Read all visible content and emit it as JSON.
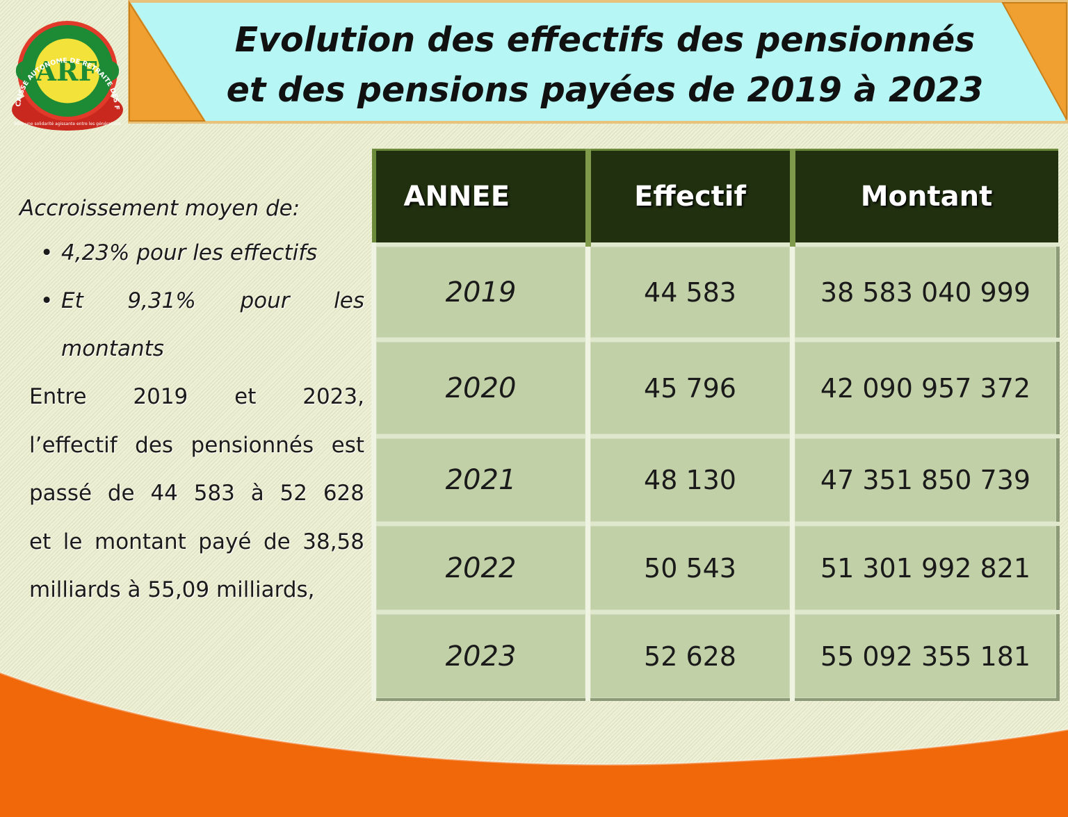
{
  "title": {
    "line1": "Evolution des effectifs des pensionnés",
    "line2": "et des pensions payées de 2019 à 2023"
  },
  "logo": {
    "ring_text": "CAISSE AUTONOME DE RETRAITE DES FONCTIONNAIRES",
    "monogram": "CARFO",
    "motto": "Bâtir une solidarité agissante entre les générations"
  },
  "sidebar": {
    "intro": "Accroissement moyen de:",
    "bullets": [
      {
        "line1": "4,23% pour les effectifs"
      },
      {
        "line1": "Et 9,31% pour les",
        "line2": "montants"
      }
    ],
    "paragraph": [
      "Entre 2019 et 2023,",
      "l’effectif des pensionnés est",
      "passé de 44 583 à 52 628",
      "et le montant payé de 38,58",
      "milliards à 55,09 milliards,"
    ]
  },
  "table": {
    "headers": [
      "ANNEE",
      "Effectif",
      "Montant"
    ],
    "rows": [
      {
        "annee": "2019",
        "effectif": "44 583",
        "montant": "38 583 040 999"
      },
      {
        "annee": "2020",
        "effectif": "45 796",
        "montant": "42 090 957 372"
      },
      {
        "annee": "2021",
        "effectif": "48 130",
        "montant": "47 351 850 739"
      },
      {
        "annee": "2022",
        "effectif": "50 543",
        "montant": "51 301 992 821"
      },
      {
        "annee": "2023",
        "effectif": "52 628",
        "montant": "55 092 355 181"
      }
    ]
  },
  "colors": {
    "banner": "#b6f6f4",
    "banner_corner": "#f0a030",
    "header_bg": "#213110",
    "cell_bg": "#c2d0a8",
    "footer_wave": "#f06a08"
  }
}
